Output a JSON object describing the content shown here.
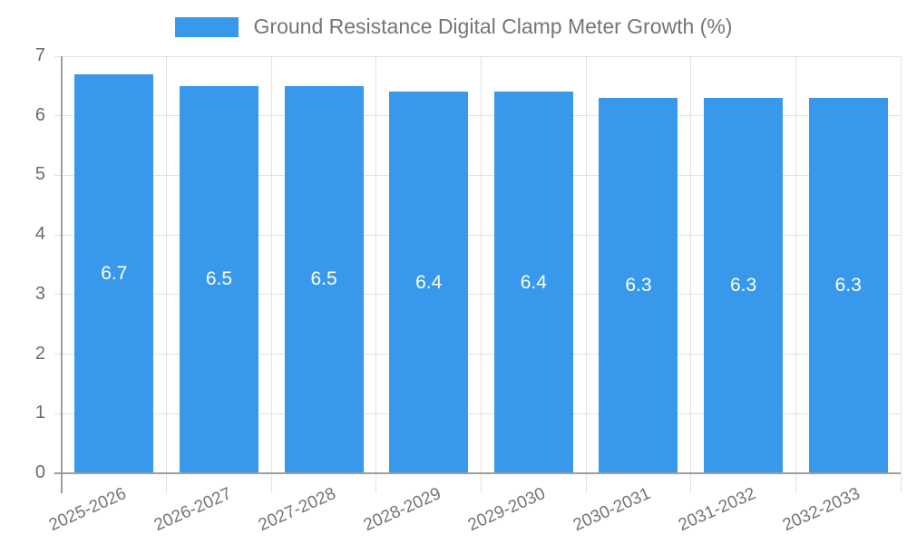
{
  "chart_data": {
    "type": "bar",
    "title": "Ground Resistance Digital Clamp Meter Growth (%)",
    "categories": [
      "2025-2026",
      "2026-2027",
      "2027-2028",
      "2028-2029",
      "2029-2030",
      "2030-2031",
      "2031-2032",
      "2032-2033"
    ],
    "values": [
      6.7,
      6.5,
      6.5,
      6.4,
      6.4,
      6.3,
      6.3,
      6.3
    ],
    "series": [
      {
        "name": "Ground Resistance Digital Clamp Meter Growth (%)",
        "values": [
          6.7,
          6.5,
          6.5,
          6.4,
          6.4,
          6.3,
          6.3,
          6.3
        ]
      }
    ],
    "xlabel": "",
    "ylabel": "",
    "ylim": [
      0,
      7
    ],
    "yticks": [
      0,
      1,
      2,
      3,
      4,
      5,
      6,
      7
    ],
    "grid": "on",
    "legend_position": "top-center",
    "x_tick_rotation_deg": -24,
    "bar_color": "#3899EC",
    "bar_label_color": "#FFFFFF"
  }
}
